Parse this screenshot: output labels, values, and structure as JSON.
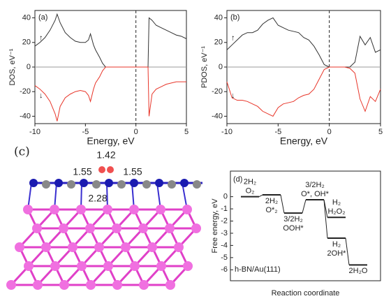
{
  "chart_data": [
    {
      "type": "line",
      "panel_label": "(a)",
      "x_label": "Energy, eV",
      "y_label": "DOS, eV⁻¹",
      "xlim": [
        -10,
        5
      ],
      "xticks": [
        -10,
        -5,
        0,
        5
      ],
      "ylim": [
        -46,
        46
      ],
      "yticks": [
        -40,
        -20,
        0,
        20,
        40
      ],
      "vline_x": 0,
      "hline_y": 0,
      "x": [
        -10,
        -9.5,
        -9,
        -8.5,
        -8,
        -7.8,
        -7.5,
        -7,
        -6.5,
        -6,
        -5.5,
        -5,
        -4.7,
        -4.5,
        -4.2,
        -4,
        -3.6,
        -3.3,
        -3,
        -2,
        -1,
        0,
        1,
        1.2,
        1.3,
        1.6,
        2,
        2.5,
        3,
        3.5,
        4,
        4.5,
        5
      ],
      "series": [
        {
          "color": "#333333",
          "values": [
            17,
            20,
            24,
            30,
            38,
            43,
            36,
            28,
            24,
            21,
            20,
            20,
            22,
            27,
            18,
            14,
            8,
            3,
            0,
            0,
            0,
            0,
            0,
            0,
            40,
            38,
            34,
            32,
            30,
            28,
            26,
            25,
            23
          ]
        },
        {
          "color": "#e8362a",
          "values": [
            -15,
            -18,
            -22,
            -28,
            -38,
            -44,
            -32,
            -25,
            -22,
            -20,
            -19,
            -20,
            -23,
            -28,
            -18,
            -13,
            -8,
            -3,
            0,
            0,
            0,
            0,
            0,
            0,
            -40,
            -22,
            -18,
            -16,
            -14,
            -13,
            -12,
            -12,
            -12
          ]
        }
      ]
    },
    {
      "type": "line",
      "panel_label": "(b)",
      "x_label": "Energy, eV",
      "y_label": "PDOS, eV⁻¹",
      "xlim": [
        -10,
        5
      ],
      "xticks": [
        -10,
        -5,
        0,
        5
      ],
      "ylim": [
        -46,
        46
      ],
      "yticks": [
        -40,
        -20,
        0,
        20,
        40
      ],
      "vline_x": 0,
      "hline_y": 0,
      "x": [
        -10,
        -9.5,
        -9,
        -8.5,
        -8,
        -7.5,
        -7,
        -6.5,
        -6,
        -5.5,
        -5,
        -4.5,
        -4,
        -3.5,
        -3,
        -2.5,
        -2,
        -1.5,
        -1,
        -0.5,
        0,
        0.5,
        1,
        1.5,
        2,
        2.5,
        3,
        3.5,
        4,
        4.5,
        5
      ],
      "series": [
        {
          "color": "#333333",
          "values": [
            14,
            18,
            22,
            26,
            28,
            28,
            30,
            35,
            38,
            40,
            34,
            32,
            30,
            29,
            28,
            24,
            22,
            17,
            10,
            2,
            0,
            0,
            0,
            0,
            0,
            4,
            25,
            18,
            24,
            12,
            14
          ]
        },
        {
          "color": "#e8362a",
          "values": [
            -12,
            -25,
            -27,
            -27,
            -28,
            -30,
            -32,
            -36,
            -38,
            -40,
            -33,
            -30,
            -29,
            -28,
            -25,
            -23,
            -22,
            -18,
            -10,
            -2,
            0,
            0,
            0,
            0,
            -1,
            -5,
            -26,
            -36,
            -24,
            -28,
            -18
          ]
        }
      ]
    },
    {
      "type": "energy_diagram",
      "panel_label": "(d)",
      "annotation": "h-BN/Au(111)",
      "x_label": "Reaction coordinate",
      "y_label": "Free energy, eV",
      "ylim": [
        -6.9,
        2.1
      ],
      "yticks": [
        0,
        -1,
        -2,
        -3,
        -4,
        -5,
        -6
      ],
      "levels": [
        {
          "x": 0,
          "value": 0,
          "labels": [
            "2H₂",
            "O₂"
          ],
          "side": "above"
        },
        {
          "x": 1,
          "value": 0.15,
          "labels": [
            "2H₂",
            "O*₂"
          ],
          "side": "below"
        },
        {
          "x": 2,
          "value": -1.35,
          "labels": [
            "3/2H₂",
            "OOH*"
          ],
          "side": "below"
        },
        {
          "x": 3,
          "value": -0.25,
          "labels": [
            "3/2H₂",
            "O*, OH*"
          ],
          "side": "above"
        },
        {
          "x": 4,
          "value": -1.7,
          "labels": [
            "H₂",
            "H₂O₂"
          ],
          "side": "above"
        },
        {
          "x": 4,
          "value": -3.4,
          "labels": [
            "H₂",
            "2OH*"
          ],
          "side": "below"
        },
        {
          "x": 5,
          "value": -5.6,
          "labels": [
            "2H₂O"
          ],
          "side": "below"
        }
      ],
      "connections": [
        [
          0,
          1
        ],
        [
          1,
          2
        ],
        [
          2,
          3
        ],
        [
          3,
          4
        ],
        [
          3,
          5
        ],
        [
          5,
          6
        ]
      ]
    }
  ],
  "structure": {
    "panel_label": "(c)",
    "labels": [
      "1.42",
      "1.55",
      "1.55",
      "2.28"
    ]
  }
}
